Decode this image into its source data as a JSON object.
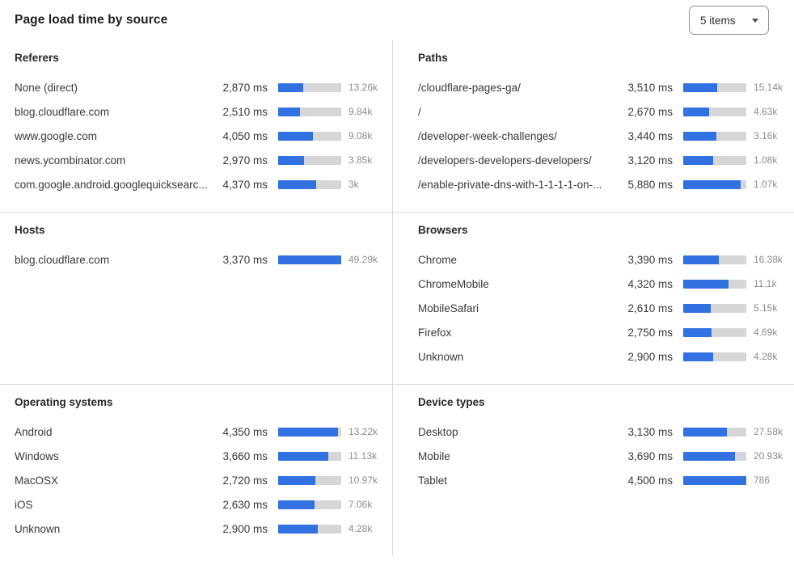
{
  "header": {
    "title": "Page load time by source",
    "items_dropdown": {
      "value": "5 items"
    }
  },
  "colors": {
    "bar_fill": "#3171e2",
    "bar_track": "#d6d6d6",
    "divider": "#dbdbdb",
    "label_text": "#36393e",
    "count_text": "#8c8c8c",
    "title_text": "#1f2023",
    "panel_title_text": "#24272c",
    "dropdown_border": "#949494",
    "dropdown_text": "#2d2d2d"
  },
  "chart_data": [
    {
      "type": "bar",
      "title": "Referers",
      "unit": "ms",
      "bar_scale_max_ms": 7300,
      "rows": [
        {
          "label": "None (direct)",
          "value_ms": 2870,
          "value_display": "2,870 ms",
          "count": "13.26k"
        },
        {
          "label": "blog.cloudflare.com",
          "value_ms": 2510,
          "value_display": "2,510 ms",
          "count": "9.84k"
        },
        {
          "label": "www.google.com",
          "value_ms": 4050,
          "value_display": "4,050 ms",
          "count": "9.08k"
        },
        {
          "label": "news.ycombinator.com",
          "value_ms": 2970,
          "value_display": "2,970 ms",
          "count": "3.85k"
        },
        {
          "label": "com.google.android.googlequicksearc...",
          "value_ms": 4370,
          "value_display": "4,370 ms",
          "count": "3k"
        }
      ]
    },
    {
      "type": "bar",
      "title": "Paths",
      "unit": "ms",
      "bar_scale_max_ms": 6500,
      "rows": [
        {
          "label": "/cloudflare-pages-ga/",
          "value_ms": 3510,
          "value_display": "3,510 ms",
          "count": "15.14k"
        },
        {
          "label": "/",
          "value_ms": 2670,
          "value_display": "2,670 ms",
          "count": "4.63k"
        },
        {
          "label": "/developer-week-challenges/",
          "value_ms": 3440,
          "value_display": "3,440 ms",
          "count": "3.16k"
        },
        {
          "label": "/developers-developers-developers/",
          "value_ms": 3120,
          "value_display": "3,120 ms",
          "count": "1.08k"
        },
        {
          "label": "/enable-private-dns-with-1-1-1-1-on-...",
          "value_ms": 5880,
          "value_display": "5,880 ms",
          "count": "1.07k"
        }
      ]
    },
    {
      "type": "bar",
      "title": "Hosts",
      "unit": "ms",
      "bar_scale_max_ms": 3370,
      "rows": [
        {
          "label": "blog.cloudflare.com",
          "value_ms": 3370,
          "value_display": "3,370 ms",
          "count": "49.29k"
        }
      ]
    },
    {
      "type": "bar",
      "title": "Browsers",
      "unit": "ms",
      "bar_scale_max_ms": 6050,
      "rows": [
        {
          "label": "Chrome",
          "value_ms": 3390,
          "value_display": "3,390 ms",
          "count": "16.38k"
        },
        {
          "label": "ChromeMobile",
          "value_ms": 4320,
          "value_display": "4,320 ms",
          "count": "11.1k"
        },
        {
          "label": "MobileSafari",
          "value_ms": 2610,
          "value_display": "2,610 ms",
          "count": "5.15k"
        },
        {
          "label": "Firefox",
          "value_ms": 2750,
          "value_display": "2,750 ms",
          "count": "4.69k"
        },
        {
          "label": "Unknown",
          "value_ms": 2900,
          "value_display": "2,900 ms",
          "count": "4.28k"
        }
      ]
    },
    {
      "type": "bar",
      "title": "Operating systems",
      "unit": "ms",
      "bar_scale_max_ms": 4600,
      "rows": [
        {
          "label": "Android",
          "value_ms": 4350,
          "value_display": "4,350 ms",
          "count": "13.22k"
        },
        {
          "label": "Windows",
          "value_ms": 3660,
          "value_display": "3,660 ms",
          "count": "11.13k"
        },
        {
          "label": "MacOSX",
          "value_ms": 2720,
          "value_display": "2,720 ms",
          "count": "10.97k"
        },
        {
          "label": "iOS",
          "value_ms": 2630,
          "value_display": "2,630 ms",
          "count": "7.06k"
        },
        {
          "label": "Unknown",
          "value_ms": 2900,
          "value_display": "2,900 ms",
          "count": "4.28k"
        }
      ]
    },
    {
      "type": "bar",
      "title": "Device types",
      "unit": "ms",
      "bar_scale_max_ms": 4500,
      "rows": [
        {
          "label": "Desktop",
          "value_ms": 3130,
          "value_display": "3,130 ms",
          "count": "27.58k"
        },
        {
          "label": "Mobile",
          "value_ms": 3690,
          "value_display": "3,690 ms",
          "count": "20.93k"
        },
        {
          "label": "Tablet",
          "value_ms": 4500,
          "value_display": "4,500 ms",
          "count": "786"
        }
      ]
    }
  ]
}
